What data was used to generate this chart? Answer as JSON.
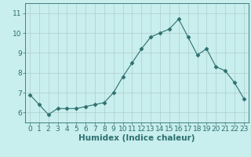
{
  "x": [
    0,
    1,
    2,
    3,
    4,
    5,
    6,
    7,
    8,
    9,
    10,
    11,
    12,
    13,
    14,
    15,
    16,
    17,
    18,
    19,
    20,
    21,
    22,
    23
  ],
  "y": [
    6.9,
    6.4,
    5.9,
    6.2,
    6.2,
    6.2,
    6.3,
    6.4,
    6.5,
    7.0,
    7.8,
    8.5,
    9.2,
    9.8,
    10.0,
    10.2,
    10.7,
    9.8,
    8.9,
    9.2,
    8.3,
    8.1,
    7.5,
    6.7
  ],
  "line_color": "#2d7070",
  "marker": "D",
  "marker_size": 2.5,
  "background_color": "#c8eeed",
  "grid_color": "#b0cece",
  "xlabel": "Humidex (Indice chaleur)",
  "xlabel_fontsize": 7.5,
  "ylim": [
    5.5,
    11.5
  ],
  "xlim": [
    -0.5,
    23.5
  ],
  "yticks": [
    6,
    7,
    8,
    9,
    10,
    11
  ],
  "xticks": [
    0,
    1,
    2,
    3,
    4,
    5,
    6,
    7,
    8,
    9,
    10,
    11,
    12,
    13,
    14,
    15,
    16,
    17,
    18,
    19,
    20,
    21,
    22,
    23
  ],
  "tick_fontsize": 6.5,
  "tick_color": "#2d7070",
  "spine_color": "#2d7070"
}
